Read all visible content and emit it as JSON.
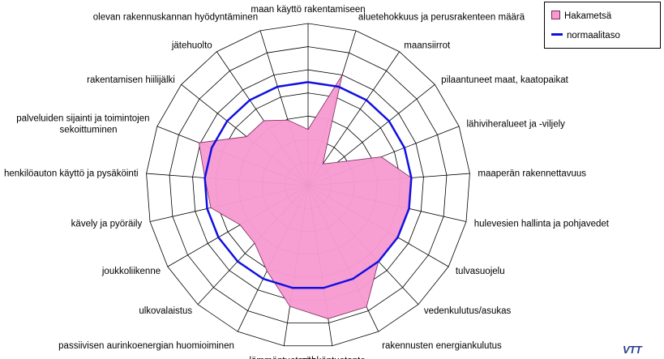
{
  "chart_data": {
    "type": "radar",
    "categories": [
      "maan käyttö rakentamiseen",
      "aluetehokkuus ja perusrakenteen määrä",
      "maansiirrot",
      "pilaantuneet maat, kaatopaikat",
      "lähiviheralueet ja -viljely",
      "maaperän rakennettavuus",
      "hulevesien hallinta ja pohjavedet",
      "tulvasuojelu",
      "vedenkulutus/asukas",
      "rakennusten energiankulutus",
      "sähköntuotanto",
      "lämmöntuotanto",
      "passiivisen aurinkoenergian huomioiminen",
      "ulkovalaistus",
      "joukkoliikenne",
      "kävely ja pyöräily",
      "henkilöauton käyttö ja pysäköinti",
      "palveluiden sijainti ja toimintojen sekoittuminen",
      "rakentamisen hiilijälki",
      "jätehuolto",
      "olevan rakennuskannan hyödyntäminen"
    ],
    "series": [
      {
        "name": "Hakametsä",
        "values": [
          4.5,
          9.3,
          2.1,
          3.0,
          6.3,
          8.3,
          8.3,
          8.3,
          8.3,
          10.8,
          10.8,
          9.8,
          7.6,
          6.3,
          6.3,
          8.0,
          8.3,
          9.4,
          6.3,
          6.3,
          5.5
        ],
        "color": "#f79bd2",
        "stroke": "#7a2a5c"
      },
      {
        "name": "normaalitaso",
        "values": [
          8.3,
          8.3,
          8.3,
          8.3,
          8.3,
          8.3,
          8.3,
          8.3,
          8.3,
          8.3,
          8.3,
          8.3,
          8.3,
          8.3,
          8.3,
          8.3,
          8.3,
          8.3,
          8.3,
          8.3,
          8.3
        ],
        "color": "#1010e0"
      }
    ],
    "rlim": [
      0,
      13
    ],
    "grid_rings": 7,
    "grid": true,
    "legend_position": "top-right"
  },
  "legend": {
    "items": [
      "Hakametsä",
      "normaalitaso"
    ]
  },
  "logo_text": "VTT",
  "colors": {
    "grid": "#000000",
    "fill": "#f79bd2",
    "fill_stroke": "#7a2a5c",
    "normal_line": "#1010e0"
  }
}
